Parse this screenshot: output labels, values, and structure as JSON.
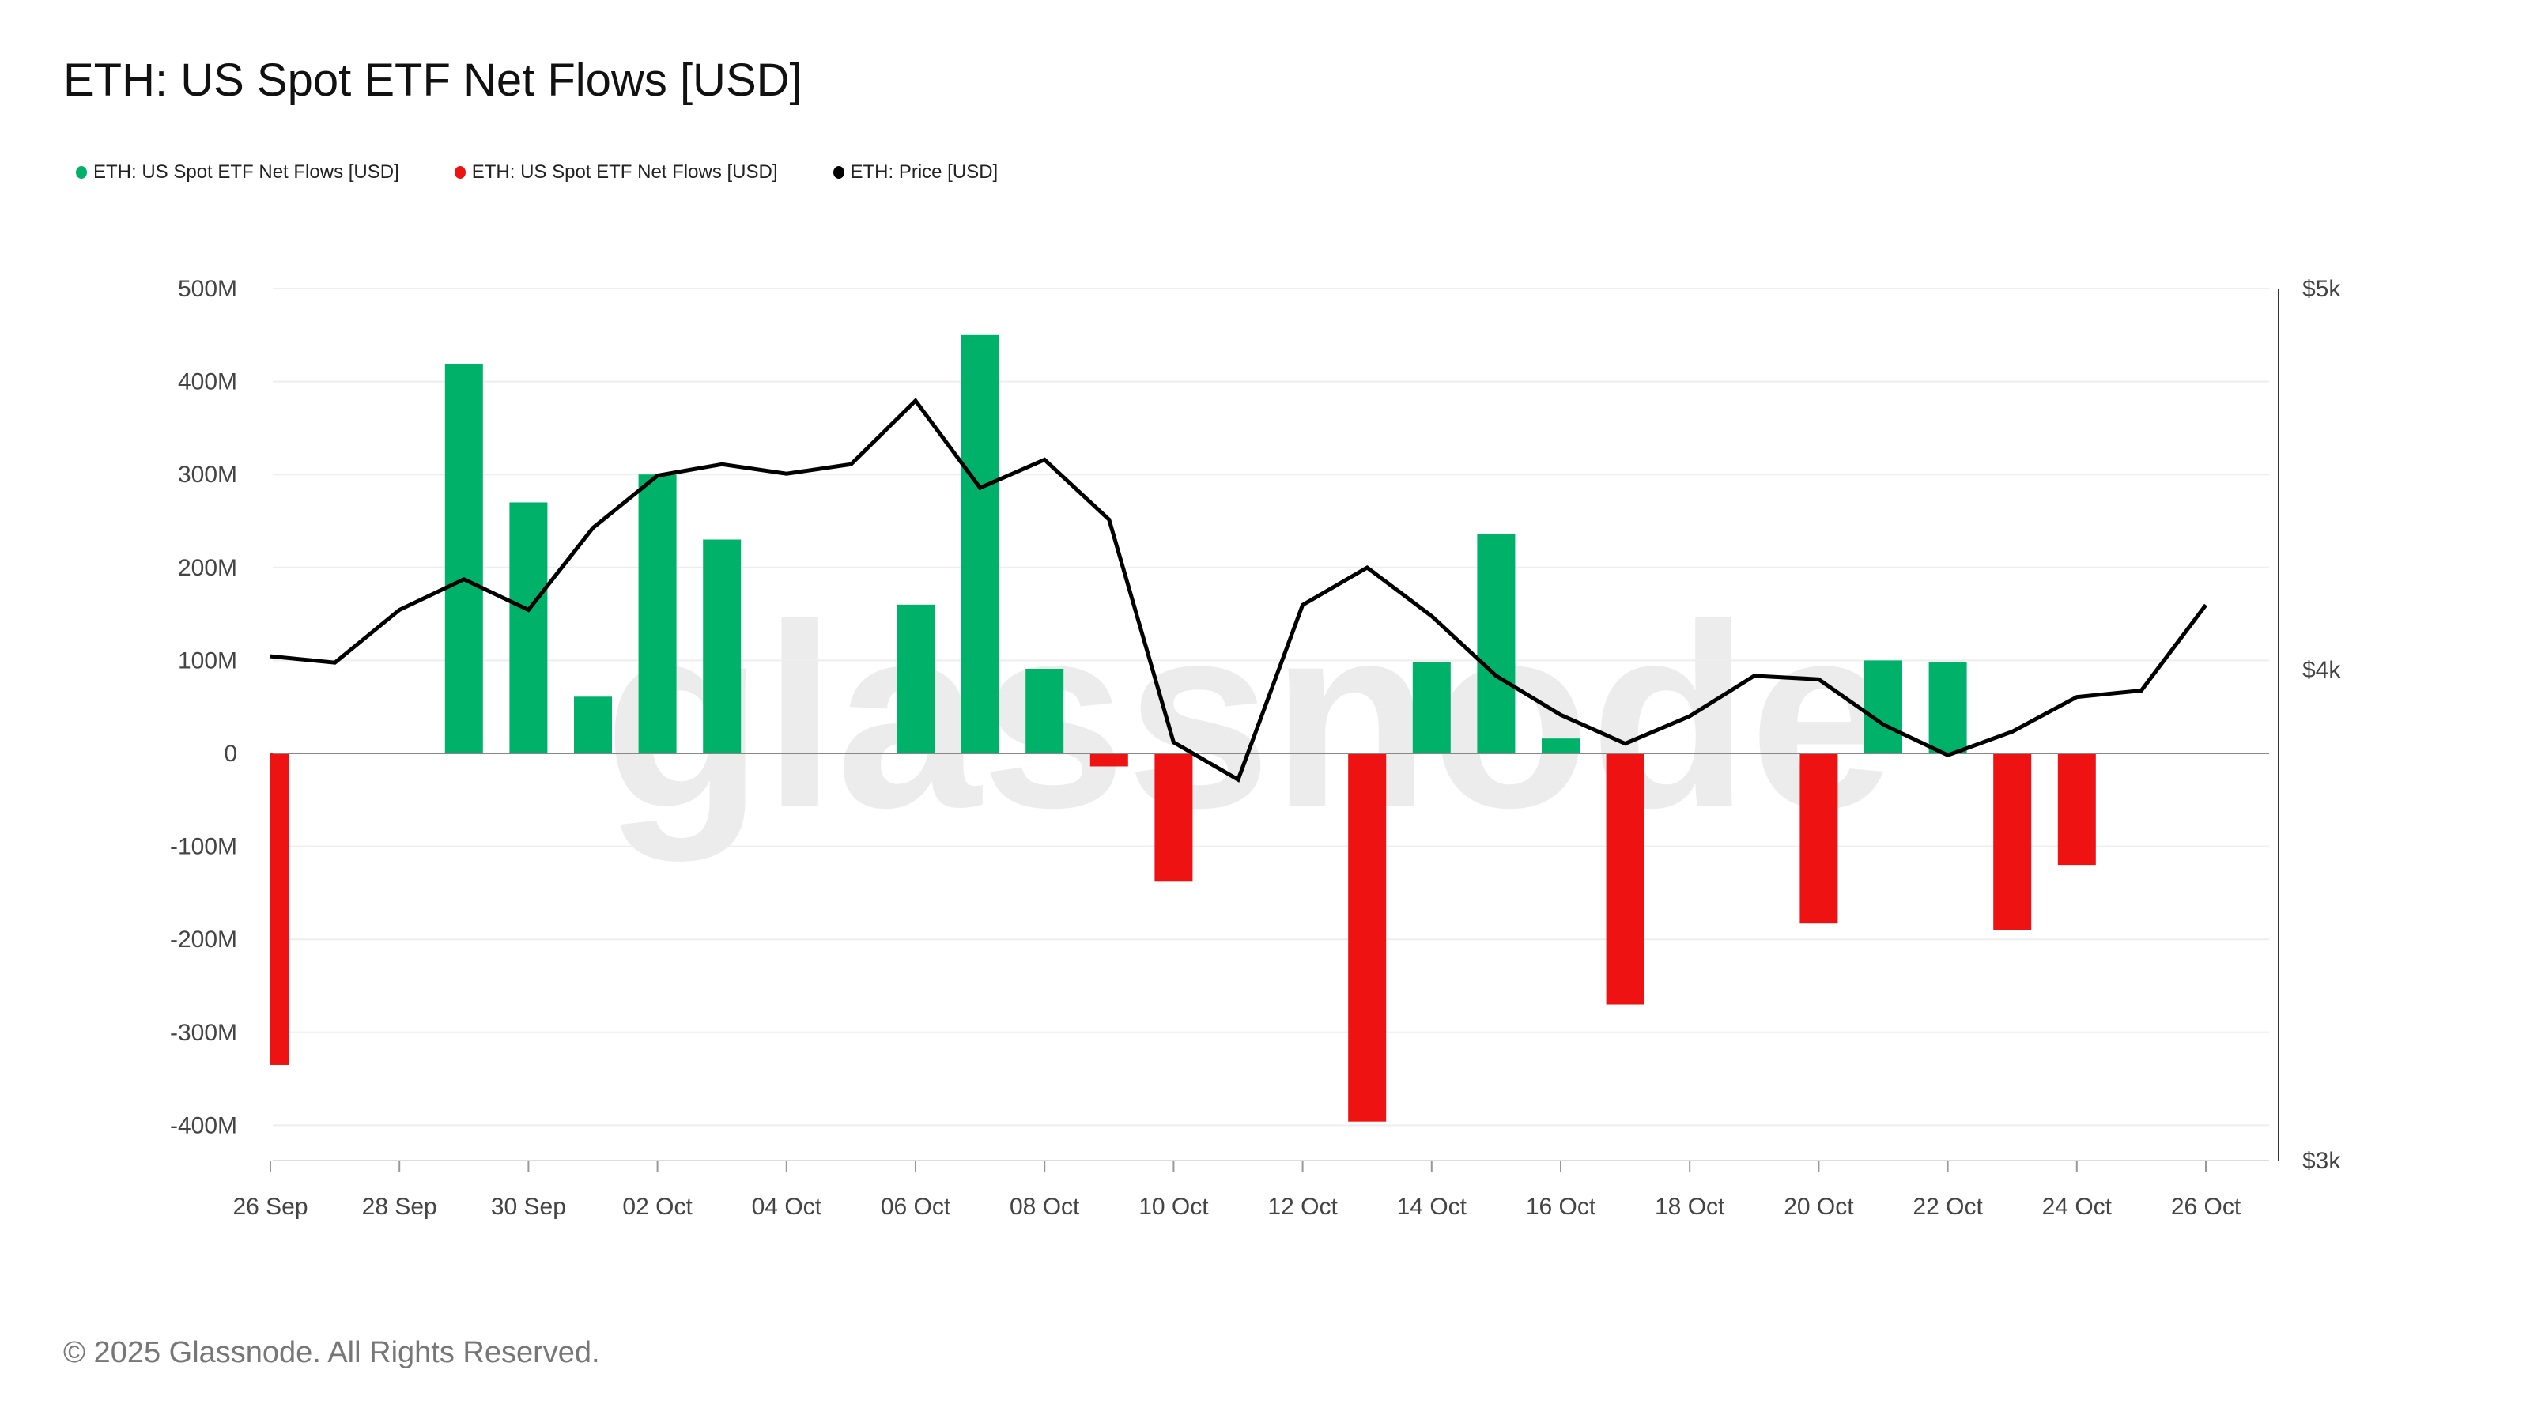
{
  "title": "ETH: US Spot ETF Net Flows [USD]",
  "copyright": "© 2025 Glassnode. All Rights Reserved.",
  "watermark": "glassnode",
  "chart_data": {
    "type": "bar+line",
    "title": "ETH: US Spot ETF Net Flows [USD]",
    "legend": [
      {
        "label": "ETH: US Spot ETF Net Flows [USD]",
        "color": "#00b16a"
      },
      {
        "label": "ETH: US Spot ETF Net Flows [USD]",
        "color": "#ee1212"
      },
      {
        "label": "ETH: Price [USD]",
        "color": "#000000"
      }
    ],
    "legend_position": "top-left",
    "grid": true,
    "x": [
      "26 Sep",
      "27 Sep",
      "28 Sep",
      "29 Sep",
      "30 Sep",
      "01 Oct",
      "02 Oct",
      "03 Oct",
      "04 Oct",
      "05 Oct",
      "06 Oct",
      "07 Oct",
      "08 Oct",
      "09 Oct",
      "10 Oct",
      "11 Oct",
      "12 Oct",
      "13 Oct",
      "14 Oct",
      "15 Oct",
      "16 Oct",
      "17 Oct",
      "18 Oct",
      "19 Oct",
      "20 Oct",
      "21 Oct",
      "22 Oct",
      "23 Oct",
      "24 Oct",
      "25 Oct",
      "26 Oct"
    ],
    "x_tick_labels": [
      "26 Sep",
      "28 Sep",
      "30 Sep",
      "02 Oct",
      "04 Oct",
      "06 Oct",
      "08 Oct",
      "10 Oct",
      "12 Oct",
      "14 Oct",
      "16 Oct",
      "18 Oct",
      "20 Oct",
      "22 Oct",
      "24 Oct",
      "26 Oct"
    ],
    "flows_musd": [
      -335,
      null,
      null,
      419,
      270,
      61,
      300,
      230,
      null,
      null,
      160,
      450,
      91,
      -14,
      -138,
      null,
      null,
      -396,
      98,
      236,
      16,
      -270,
      null,
      null,
      -183,
      100,
      98,
      -190,
      -120,
      null,
      null
    ],
    "price_usd": [
      4031,
      4016,
      4142,
      4217,
      4142,
      4346,
      4481,
      4511,
      4486,
      4511,
      4682,
      4449,
      4523,
      4367,
      3833,
      3750,
      4154,
      4246,
      4127,
      3985,
      3895,
      3830,
      3892,
      3985,
      3977,
      3873,
      3804,
      3857,
      3936,
      3951,
      4154
    ],
    "y_left": {
      "ylim": [
        -400,
        500
      ],
      "ticks": [
        "500M",
        "400M",
        "300M",
        "200M",
        "100M",
        "0",
        "-100M",
        "-200M",
        "-300M",
        "-400M"
      ]
    },
    "y_right": {
      "scale": "log",
      "ylim": [
        3000,
        5000
      ],
      "ticks": [
        "$5k",
        "$4k",
        "$3k"
      ]
    },
    "positive_color": "#00b16a",
    "negative_color": "#ee1212",
    "price_color": "#000000"
  }
}
